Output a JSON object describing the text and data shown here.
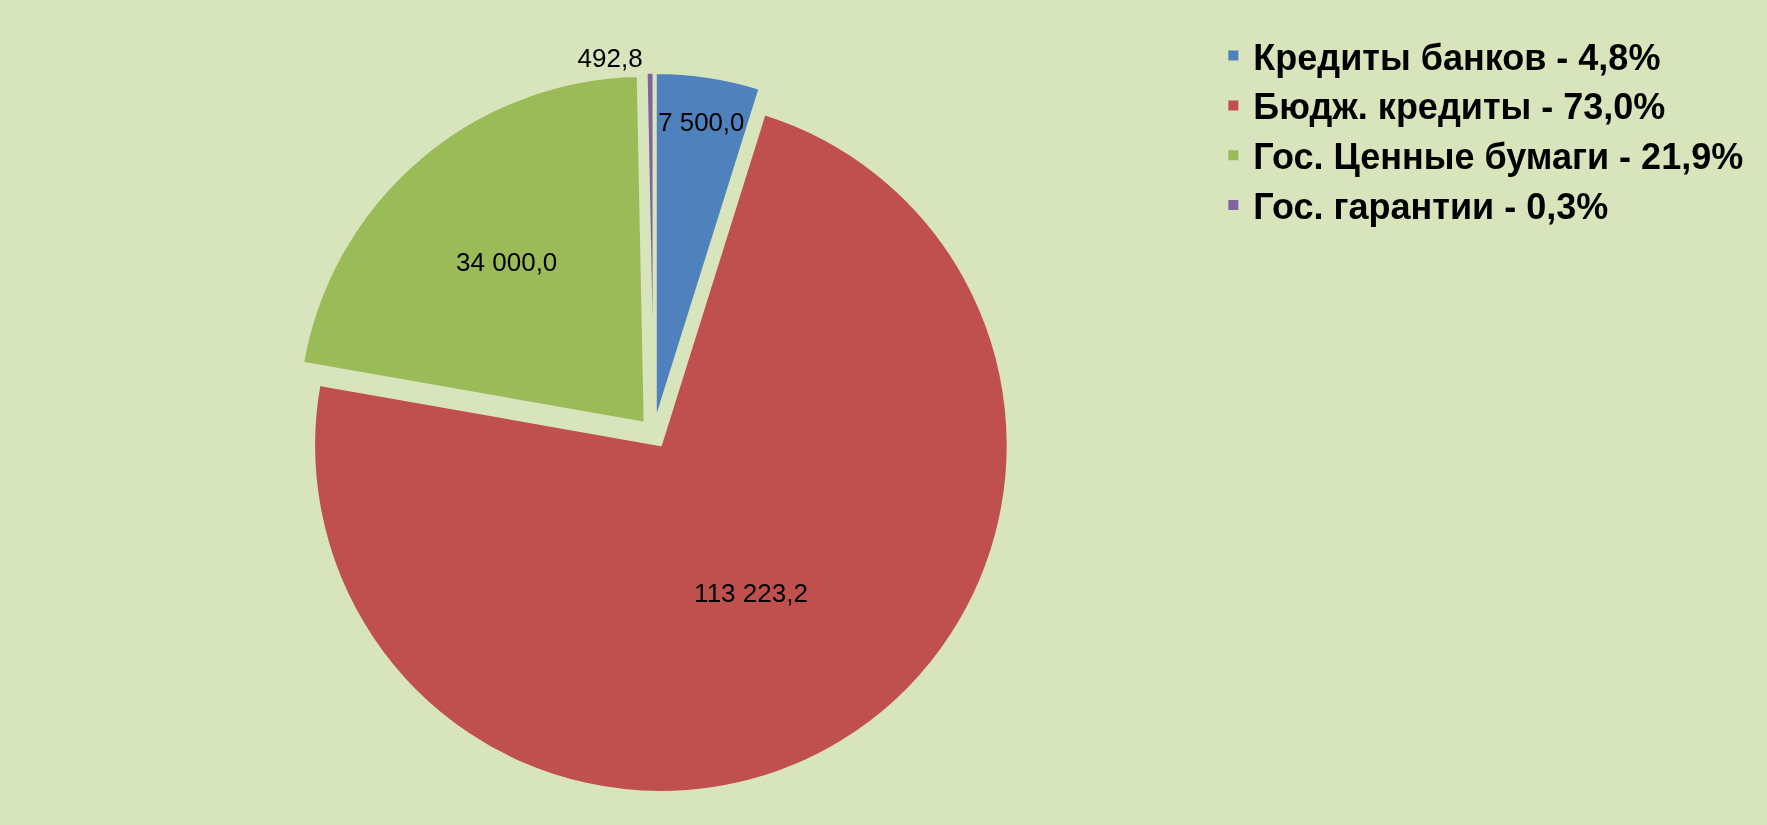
{
  "chart_data": {
    "type": "pie",
    "categories": [
      "Кредиты банков - 4,8%",
      "Бюдж. кредиты - 73,0%",
      "Гос. Ценные бумаги - 21,9%",
      "Гос. гарантии - 0,3%"
    ],
    "values": [
      7500.0,
      113223.2,
      34000.0,
      492.8
    ],
    "value_labels": [
      "7 500,0",
      "113 223,2",
      "34 000,0",
      "492,8"
    ],
    "colors": [
      "#4f81bd",
      "#c0504d",
      "#9bbb59",
      "#8064a2"
    ],
    "legend": "right"
  }
}
